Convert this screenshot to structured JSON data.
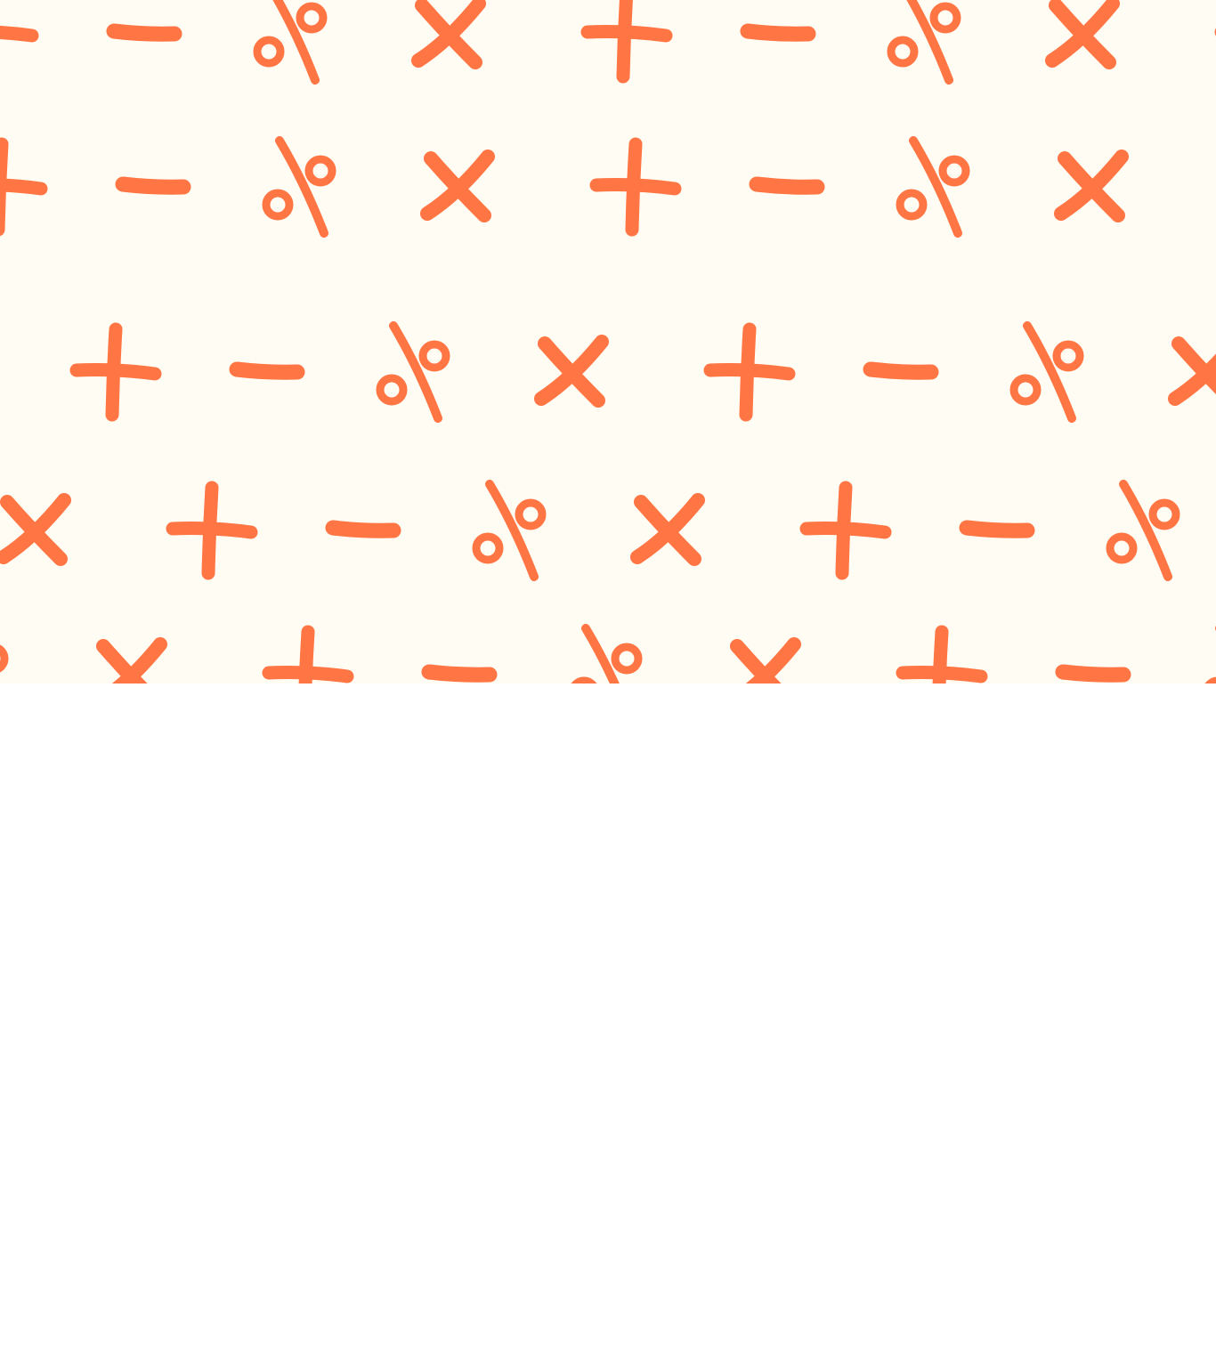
{
  "hero": {
    "background_color": "#FFFCF3",
    "symbol_color": "#FF7543",
    "pattern_icons": [
      "plus-icon",
      "minus-icon",
      "percent-icon",
      "times-icon"
    ]
  },
  "lower_section": {
    "background_color": "#FFFFFF"
  }
}
